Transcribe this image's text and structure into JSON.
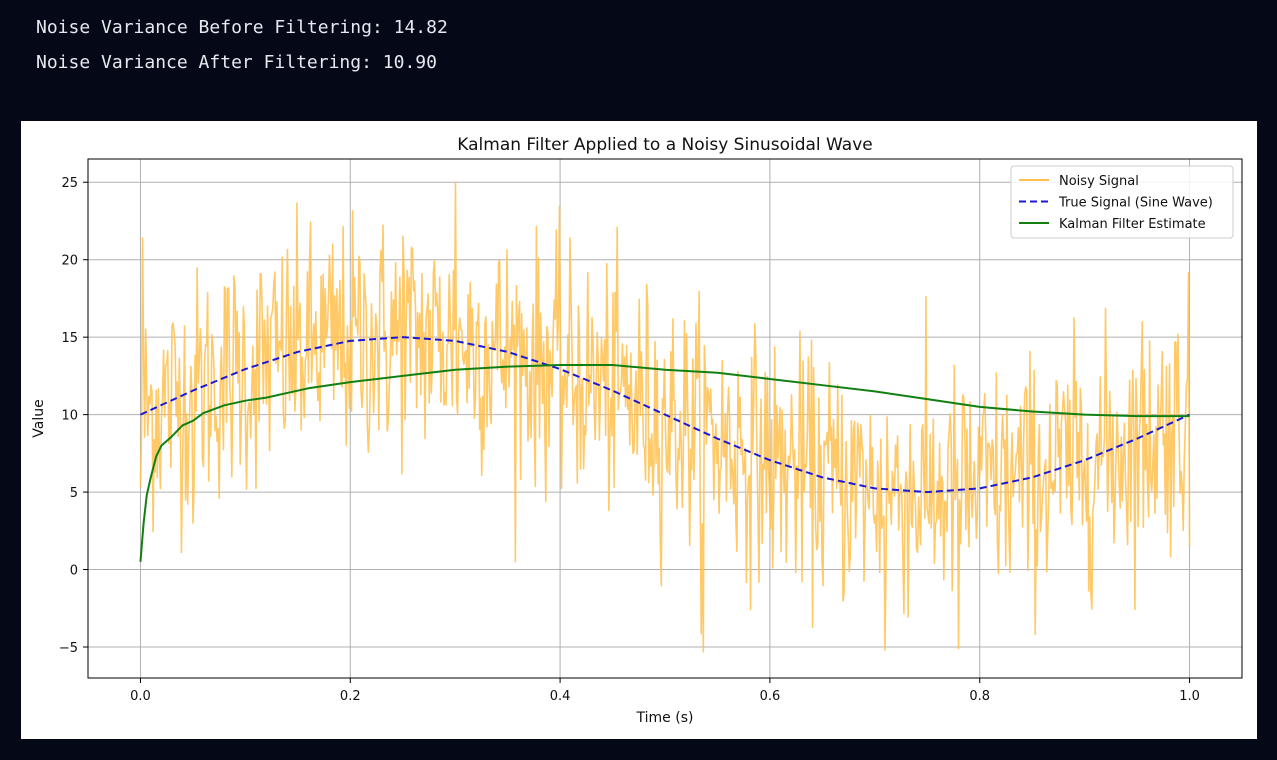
{
  "console": {
    "line1": "Noise Variance Before Filtering: 14.82",
    "line2": "Noise Variance After Filtering: 10.90"
  },
  "colors": {
    "background": "#040817",
    "noisy": "#ffc04d",
    "true": "#1a1ad6",
    "kalman": "#118011",
    "grid": "#b0b0b0"
  },
  "chart_data": {
    "type": "line",
    "title": "Kalman Filter Applied to a Noisy Sinusoidal Wave",
    "xlabel": "Time (s)",
    "ylabel": "Value",
    "xlim": [
      -0.05,
      1.05
    ],
    "ylim": [
      -7,
      26.5
    ],
    "xticks": [
      0.0,
      0.2,
      0.4,
      0.6,
      0.8,
      1.0
    ],
    "xtick_labels": [
      "0.0",
      "0.2",
      "0.4",
      "0.6",
      "0.8",
      "1.0"
    ],
    "yticks": [
      -5,
      0,
      5,
      10,
      15,
      20,
      25
    ],
    "ytick_labels": [
      "−5",
      "0",
      "5",
      "10",
      "15",
      "20",
      "25"
    ],
    "grid": true,
    "legend_position": "top-right",
    "series": [
      {
        "name": "Noisy Signal",
        "style": "solid",
        "color": "#ffc04d",
        "points_count": 1000,
        "noise_std": 3.85,
        "x": [
          0.0,
          0.002,
          0.05,
          0.1,
          0.2,
          0.25,
          0.3,
          0.4,
          0.5,
          0.537,
          0.6,
          0.7,
          0.71,
          0.75,
          0.78,
          0.8,
          0.9,
          1.0
        ],
        "y": [
          5.3,
          21.4,
          3.0,
          9.5,
          16.0,
          21.5,
          25.0,
          14.0,
          9.0,
          -5.3,
          5.0,
          3.0,
          -5.2,
          4.0,
          -5.1,
          6.0,
          7.0,
          1.5
        ]
      },
      {
        "name": "True Signal (Sine Wave)",
        "style": "dashed",
        "color": "#1a1ad6",
        "x": [
          0.0,
          0.05,
          0.1,
          0.15,
          0.2,
          0.25,
          0.3,
          0.35,
          0.4,
          0.45,
          0.5,
          0.55,
          0.6,
          0.65,
          0.7,
          0.75,
          0.8,
          0.85,
          0.9,
          0.95,
          1.0
        ],
        "y": [
          10.0,
          11.55,
          12.94,
          14.05,
          14.76,
          15.0,
          14.76,
          14.05,
          12.94,
          11.55,
          10.0,
          8.45,
          7.06,
          5.95,
          5.24,
          5.0,
          5.24,
          5.95,
          7.06,
          8.45,
          10.0
        ]
      },
      {
        "name": "Kalman Filter Estimate",
        "style": "solid",
        "color": "#118011",
        "x": [
          0.0,
          0.003,
          0.006,
          0.01,
          0.015,
          0.02,
          0.03,
          0.04,
          0.05,
          0.06,
          0.08,
          0.1,
          0.12,
          0.14,
          0.16,
          0.2,
          0.25,
          0.3,
          0.35,
          0.4,
          0.45,
          0.5,
          0.55,
          0.6,
          0.65,
          0.7,
          0.75,
          0.8,
          0.85,
          0.9,
          0.95,
          1.0
        ],
        "y": [
          0.5,
          3.0,
          4.8,
          6.0,
          7.3,
          8.0,
          8.6,
          9.3,
          9.6,
          10.1,
          10.6,
          10.9,
          11.1,
          11.4,
          11.7,
          12.1,
          12.5,
          12.9,
          13.1,
          13.2,
          13.2,
          12.9,
          12.7,
          12.3,
          11.9,
          11.5,
          11.0,
          10.5,
          10.2,
          10.0,
          9.9,
          9.9
        ]
      }
    ]
  }
}
